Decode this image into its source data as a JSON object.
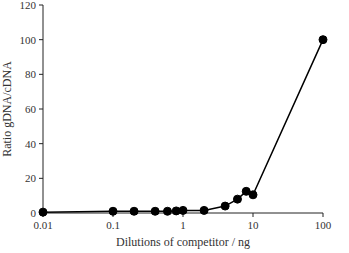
{
  "chart_data": {
    "type": "line",
    "x_label": "Dilutions of competitor / ng",
    "y_label": "Ratio gDNA/cDNA",
    "x": [
      0.01,
      0.1,
      0.2,
      0.4,
      0.6,
      0.8,
      1,
      2,
      4,
      6,
      8,
      10,
      100
    ],
    "values": [
      0.5,
      1,
      1,
      1,
      1,
      1.2,
      1.5,
      1.5,
      4,
      8,
      12.5,
      10.5,
      100
    ],
    "color": "#000000",
    "marker": "circle",
    "log": "x",
    "grid": false,
    "xlim": [
      0.01,
      100
    ],
    "xticks": [
      0.01,
      0.1,
      1,
      10,
      100
    ],
    "ylim": [
      0,
      120
    ],
    "yticks": [
      0,
      20,
      40,
      60,
      80,
      100,
      120
    ]
  }
}
